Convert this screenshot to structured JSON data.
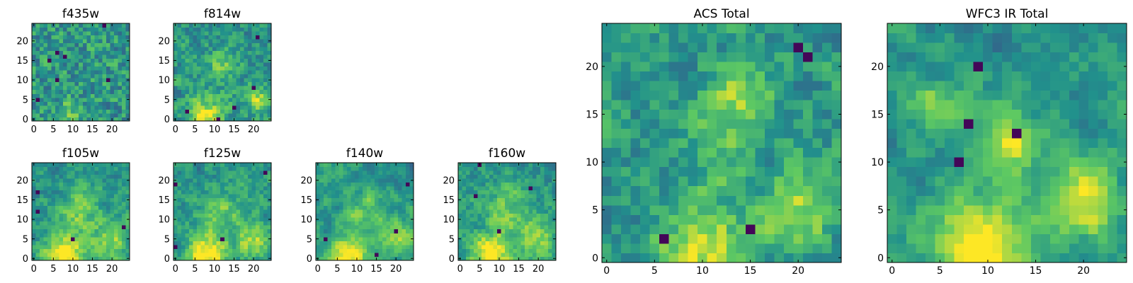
{
  "palette": {
    "stops": [
      "#440154",
      "#3b528b",
      "#21918c",
      "#5ec962",
      "#fde725"
    ],
    "background": "#ffffff",
    "axis": "#000000"
  },
  "chart_data": [
    {
      "type": "heatmap",
      "id": "f435w",
      "title": "f435w",
      "grid_size": [
        25,
        25
      ],
      "origin": "lower",
      "colormap": "viridis",
      "noise": 0.75,
      "xticks": [
        0,
        5,
        10,
        15,
        20
      ],
      "yticks": [
        0,
        5,
        10,
        15,
        20
      ],
      "blobs": [
        {
          "x": 9,
          "y": 1,
          "r": 3,
          "amp": 0.15
        }
      ]
    },
    {
      "type": "heatmap",
      "id": "f814w",
      "title": "f814w",
      "grid_size": [
        25,
        25
      ],
      "origin": "lower",
      "colormap": "viridis",
      "noise": 0.55,
      "xticks": [
        0,
        5,
        10,
        15,
        20
      ],
      "yticks": [
        0,
        5,
        10,
        15,
        20
      ],
      "blobs": [
        {
          "x": 8,
          "y": 1,
          "r": 3,
          "amp": 0.45
        },
        {
          "x": 21,
          "y": 5,
          "r": 2.5,
          "amp": 0.3
        },
        {
          "x": 12,
          "y": 13,
          "r": 3,
          "amp": 0.2
        }
      ]
    },
    {
      "type": "heatmap",
      "id": "f105w",
      "title": "f105w",
      "grid_size": [
        25,
        25
      ],
      "origin": "lower",
      "colormap": "viridis",
      "noise": 0.4,
      "xticks": [
        0,
        5,
        10,
        15,
        20
      ],
      "yticks": [
        0,
        5,
        10,
        15,
        20
      ],
      "blobs": [
        {
          "x": 8,
          "y": 1,
          "r": 3.5,
          "amp": 0.55
        },
        {
          "x": 20,
          "y": 5,
          "r": 3,
          "amp": 0.35
        },
        {
          "x": 12,
          "y": 12,
          "r": 4,
          "amp": 0.25
        }
      ]
    },
    {
      "type": "heatmap",
      "id": "f125w",
      "title": "f125w",
      "grid_size": [
        25,
        25
      ],
      "origin": "lower",
      "colormap": "viridis",
      "noise": 0.4,
      "xticks": [
        0,
        5,
        10,
        15,
        20
      ],
      "yticks": [
        0,
        5,
        10,
        15,
        20
      ],
      "blobs": [
        {
          "x": 8,
          "y": 1,
          "r": 3.5,
          "amp": 0.55
        },
        {
          "x": 20,
          "y": 5,
          "r": 3,
          "amp": 0.35
        },
        {
          "x": 12,
          "y": 12,
          "r": 4,
          "amp": 0.25
        }
      ]
    },
    {
      "type": "heatmap",
      "id": "f140w",
      "title": "f140w",
      "grid_size": [
        25,
        25
      ],
      "origin": "lower",
      "colormap": "viridis",
      "noise": 0.3,
      "xticks": [
        0,
        5,
        10,
        15,
        20
      ],
      "yticks": [
        0,
        5,
        10,
        15,
        20
      ],
      "blobs": [
        {
          "x": 8,
          "y": 1,
          "r": 3.5,
          "amp": 0.5
        },
        {
          "x": 20,
          "y": 5,
          "r": 3,
          "amp": 0.3
        },
        {
          "x": 12,
          "y": 12,
          "r": 4,
          "amp": 0.2
        }
      ]
    },
    {
      "type": "heatmap",
      "id": "f160w",
      "title": "f160w",
      "grid_size": [
        25,
        25
      ],
      "origin": "lower",
      "colormap": "viridis",
      "noise": 0.4,
      "xticks": [
        0,
        5,
        10,
        15,
        20
      ],
      "yticks": [
        0,
        5,
        10,
        15,
        20
      ],
      "blobs": [
        {
          "x": 8,
          "y": 1,
          "r": 3.5,
          "amp": 0.55
        },
        {
          "x": 20,
          "y": 5,
          "r": 3,
          "amp": 0.35
        },
        {
          "x": 12,
          "y": 12,
          "r": 4,
          "amp": 0.25
        }
      ]
    },
    {
      "type": "heatmap",
      "id": "acs-total",
      "title": "ACS Total",
      "grid_size": [
        25,
        25
      ],
      "origin": "lower",
      "colormap": "viridis",
      "noise": 0.5,
      "xticks": [
        0,
        5,
        10,
        15,
        20
      ],
      "yticks": [
        0,
        5,
        10,
        15,
        20
      ],
      "blobs": [
        {
          "x": 10,
          "y": 1,
          "r": 3,
          "amp": 0.4
        },
        {
          "x": 20,
          "y": 5,
          "r": 2.5,
          "amp": 0.35
        },
        {
          "x": 14,
          "y": 17,
          "r": 2,
          "amp": 0.35
        },
        {
          "x": 12,
          "y": 11,
          "r": 3,
          "amp": 0.2
        }
      ]
    },
    {
      "type": "heatmap",
      "id": "wfc3-ir-total",
      "title": "WFC3 IR Total",
      "grid_size": [
        25,
        25
      ],
      "origin": "lower",
      "colormap": "viridis",
      "noise": 0.3,
      "xticks": [
        0,
        5,
        10,
        15,
        20
      ],
      "yticks": [
        0,
        5,
        10,
        15,
        20
      ],
      "blobs": [
        {
          "x": 9,
          "y": 1,
          "r": 3.5,
          "amp": 0.55
        },
        {
          "x": 20,
          "y": 6,
          "r": 2.5,
          "amp": 0.5
        },
        {
          "x": 12,
          "y": 12,
          "r": 2.5,
          "amp": 0.45
        },
        {
          "x": 4,
          "y": 16,
          "r": 1.8,
          "amp": 0.3
        }
      ]
    }
  ]
}
